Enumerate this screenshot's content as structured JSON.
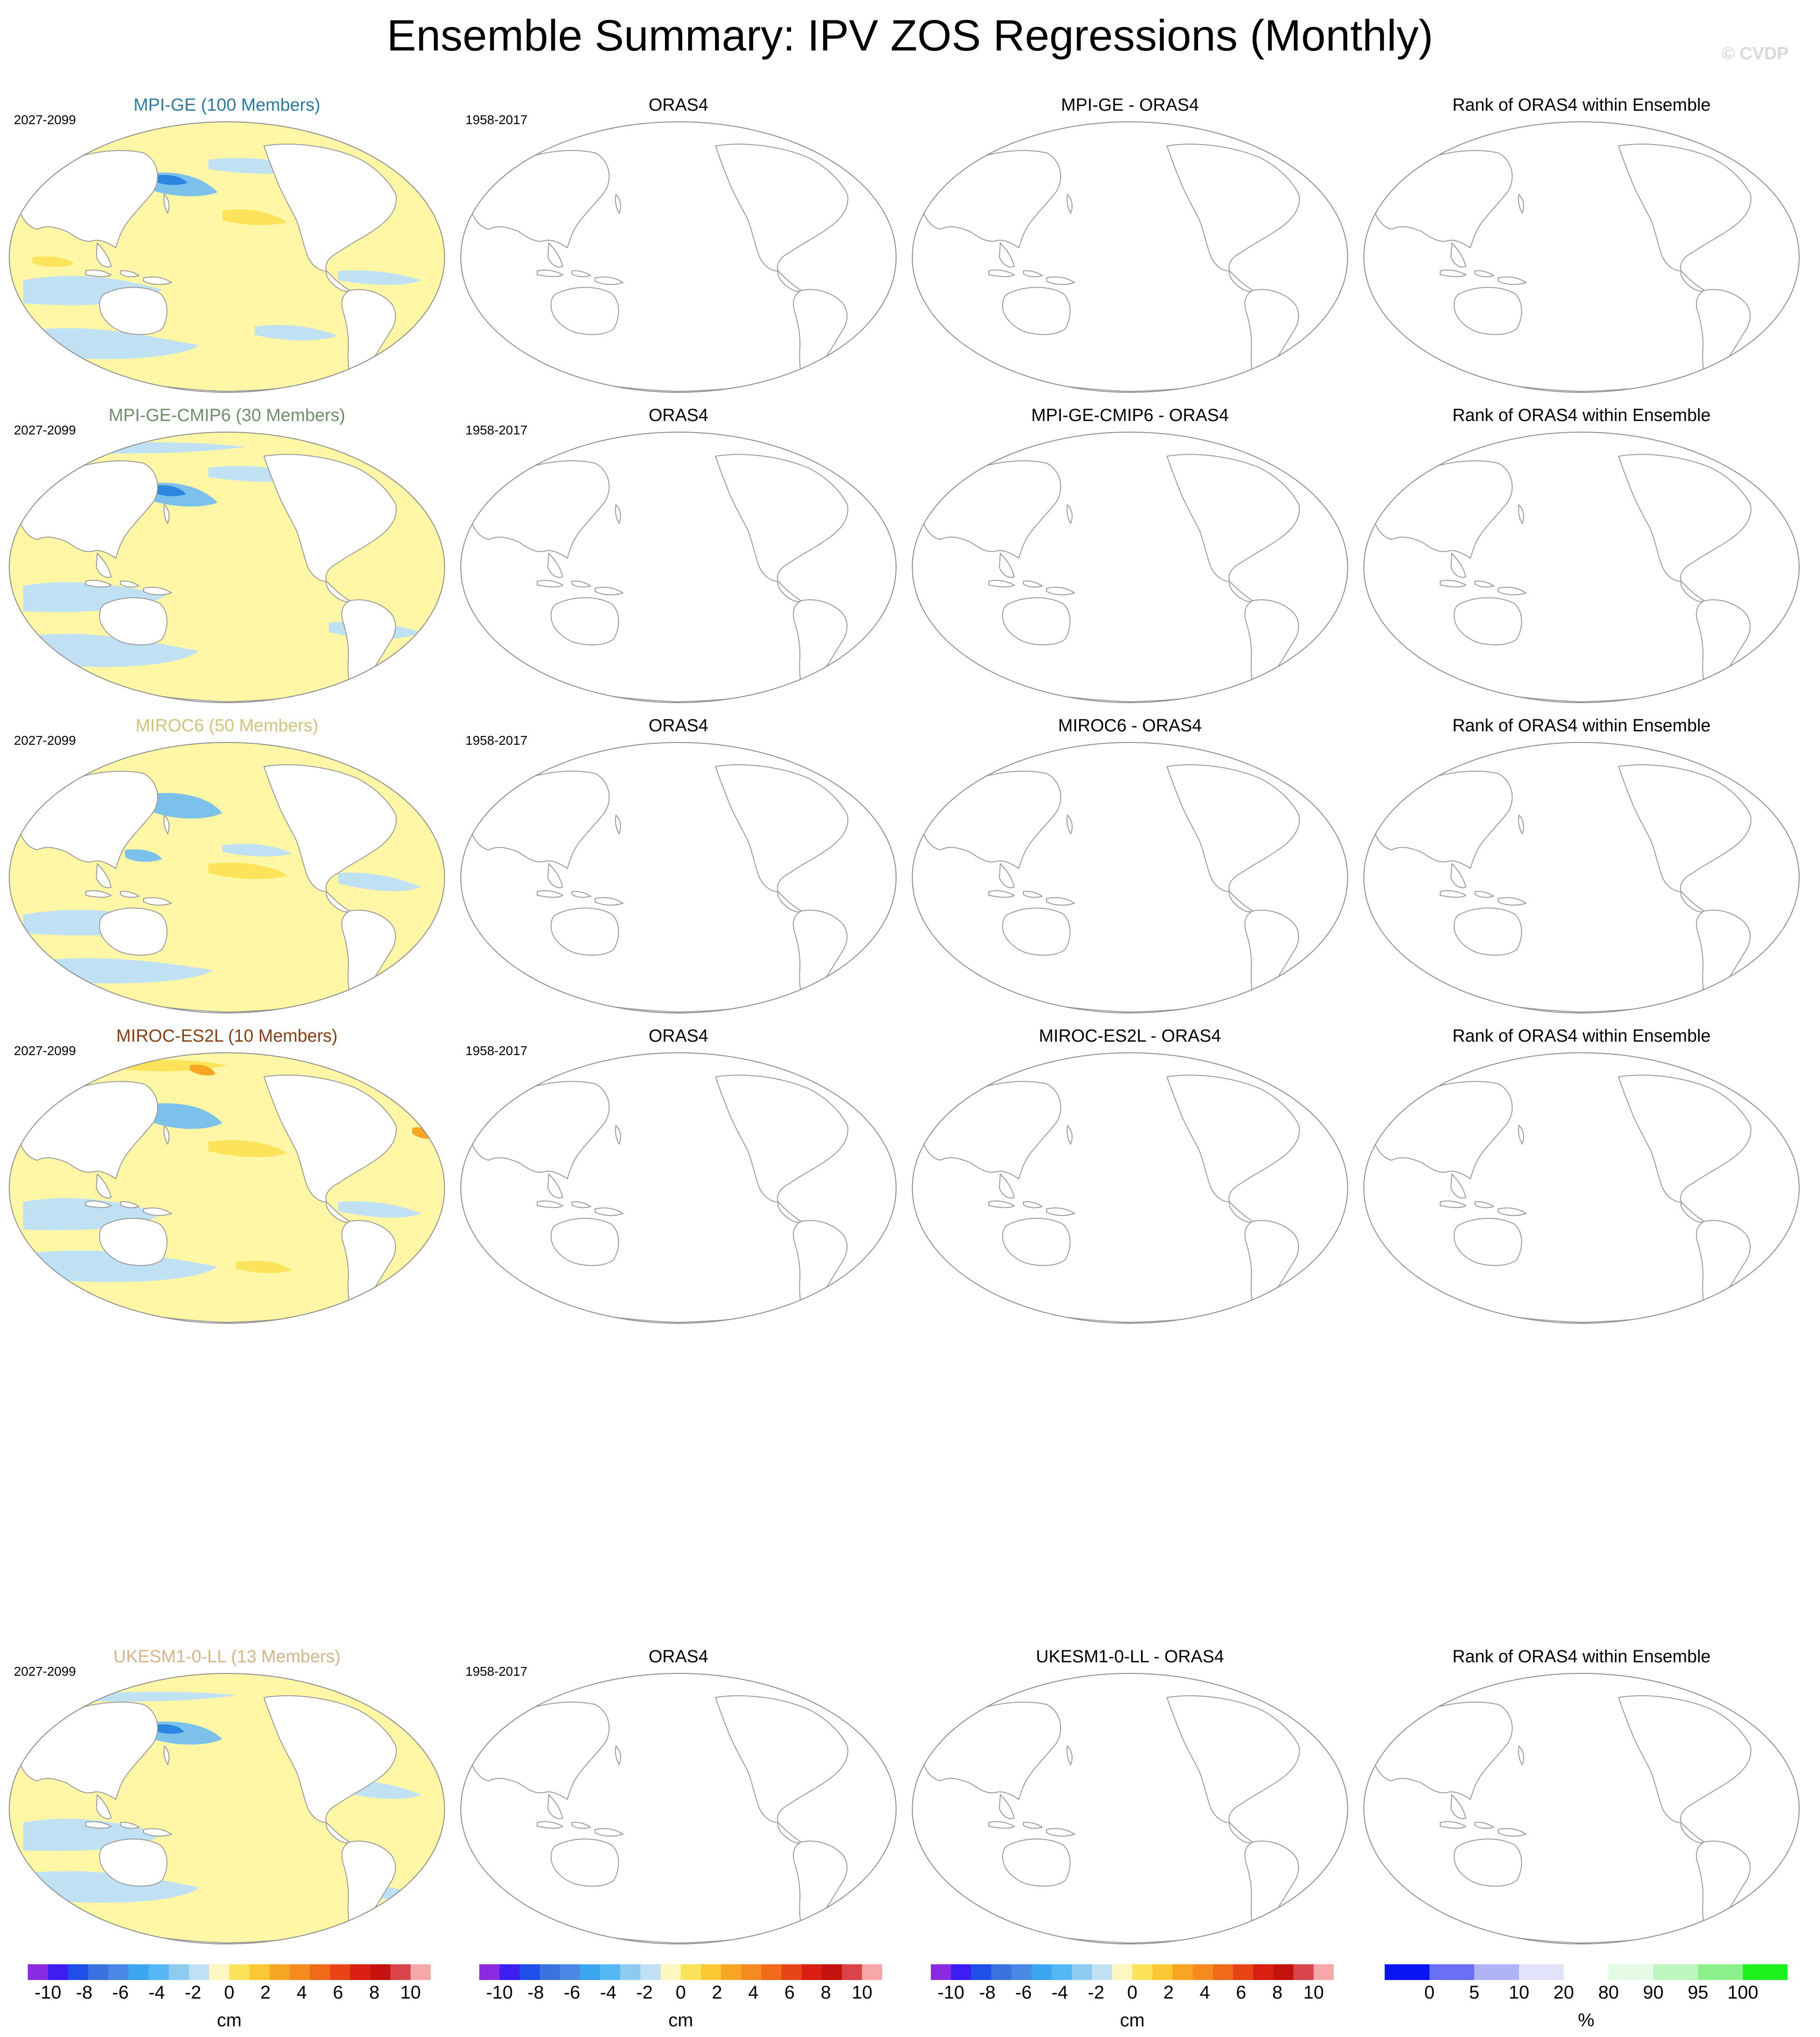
{
  "title": "Ensemble Summary: IPV ZOS Regressions (Monthly)",
  "copyright": "© CVDP",
  "colors": {
    "neg_light": "#bfe1f3",
    "neg_mid": "#7cc1ec",
    "neg_dark": "#2b86e3",
    "pos_light": "#fff7a6",
    "pos_mid": "#fde35a",
    "pos_dark": "#f7a623",
    "land": "#ffffff",
    "coast": "#9a9a9a"
  },
  "rows": [
    {
      "model_title": "MPI-GE (100 Members)",
      "model_color": "#2c7aa3",
      "model_period": "2027-2099",
      "obs_title": "ORAS4",
      "obs_period": "1958-2017",
      "diff_title": "MPI-GE - ORAS4",
      "rank_title": "Rank of ORAS4 within Ensemble"
    },
    {
      "model_title": "MPI-GE-CMIP6 (30 Members)",
      "model_color": "#6f8f6a",
      "model_period": "2027-2099",
      "obs_title": "ORAS4",
      "obs_period": "1958-2017",
      "diff_title": "MPI-GE-CMIP6 - ORAS4",
      "rank_title": "Rank of ORAS4 within Ensemble"
    },
    {
      "model_title": "MIROC6 (50 Members)",
      "model_color": "#d2c37a",
      "model_period": "2027-2099",
      "obs_title": "ORAS4",
      "obs_period": "1958-2017",
      "diff_title": "MIROC6 - ORAS4",
      "rank_title": "Rank of ORAS4 within Ensemble"
    },
    {
      "model_title": "MIROC-ES2L (10 Members)",
      "model_color": "#8a3f12",
      "model_period": "2027-2099",
      "obs_title": "ORAS4",
      "obs_period": "1958-2017",
      "diff_title": "MIROC-ES2L - ORAS4",
      "rank_title": "Rank of ORAS4 within Ensemble"
    },
    {
      "model_title": "UKESM1-0-LL (13 Members)",
      "model_color": "#d6b48a",
      "model_period": "2027-2099",
      "obs_title": "ORAS4",
      "obs_period": "1958-2017",
      "diff_title": "UKESM1-0-LL - ORAS4",
      "rank_title": "Rank of ORAS4 within Ensemble"
    }
  ],
  "colorbar_cm": {
    "unit": "cm",
    "ticks": [
      "-10",
      "-8",
      "-6",
      "-4",
      "-2",
      "0",
      "2",
      "4",
      "6",
      "8",
      "10"
    ],
    "colors": [
      "#8a2be2",
      "#3d1df0",
      "#1f4ee8",
      "#3a72e0",
      "#4a8ae6",
      "#3aa7f0",
      "#55b8f2",
      "#8fcbee",
      "#bfe1f3",
      "#fff7c2",
      "#fde35a",
      "#f9c832",
      "#f7a623",
      "#f58a1f",
      "#f06a1a",
      "#e84516",
      "#d91e12",
      "#c5120e",
      "#d9434a",
      "#f6a8a8"
    ]
  },
  "colorbar_pct": {
    "unit": "%",
    "ticks": [
      "0",
      "5",
      "10",
      "20",
      "80",
      "90",
      "95",
      "100"
    ],
    "colors": [
      "#0a14f5",
      "#6a70f4",
      "#b0b3f6",
      "#e2e2fb",
      "#ffffff",
      "#e6fbe6",
      "#bdf7bd",
      "#8cf18c",
      "#1ef01e"
    ]
  }
}
